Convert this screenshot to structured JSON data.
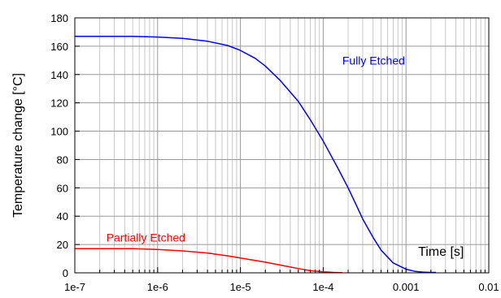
{
  "chart_data": {
    "type": "line",
    "x_scale": "log",
    "xlim": [
      1e-07,
      0.01
    ],
    "ylim": [
      0,
      180
    ],
    "x_ticks": [
      1e-07,
      1e-06,
      1e-05,
      0.0001,
      0.001,
      0.01
    ],
    "x_tick_labels": [
      "1e-7",
      "1e-6",
      "1e-5",
      "1e-4",
      "0.001",
      "0.01"
    ],
    "y_ticks": [
      0,
      20,
      40,
      60,
      80,
      100,
      120,
      140,
      160,
      180
    ],
    "y_tick_labels": [
      "0",
      "20",
      "40",
      "60",
      "80",
      "100",
      "120",
      "140",
      "160",
      "180"
    ],
    "xlabel": "Time [s]",
    "ylabel": "Temperature change [°C]",
    "grid": true,
    "series": [
      {
        "name": "Fully Etched",
        "color": "#0000ff",
        "x": [
          1e-07,
          2e-07,
          5e-07,
          1e-06,
          2e-06,
          4e-06,
          7e-06,
          1e-05,
          1.5e-05,
          2e-05,
          3e-05,
          5e-05,
          7e-05,
          0.0001,
          0.00015,
          0.0002,
          0.00025,
          0.0003,
          0.0004,
          0.0005,
          0.0007,
          0.001,
          0.0013,
          0.0016,
          0.002,
          0.0023
        ],
        "y": [
          167,
          167,
          167,
          166.5,
          165.5,
          163.5,
          160.5,
          157,
          151.5,
          146,
          136,
          121,
          108,
          93,
          74,
          60,
          48,
          38,
          25,
          16,
          7,
          2.5,
          1,
          0.5,
          0.3,
          0.3
        ]
      },
      {
        "name": "Partially Etched",
        "color": "#ff0000",
        "x": [
          1e-07,
          2e-07,
          5e-07,
          1e-06,
          2e-06,
          4e-06,
          7e-06,
          1e-05,
          2e-05,
          3e-05,
          5e-05,
          7e-05,
          0.0001,
          0.00013,
          0.00017
        ],
        "y": [
          17,
          17,
          17,
          16.5,
          15.5,
          14,
          12,
          10.5,
          7.5,
          5.5,
          3,
          1.5,
          0.7,
          0.3,
          0.2
        ]
      }
    ]
  }
}
